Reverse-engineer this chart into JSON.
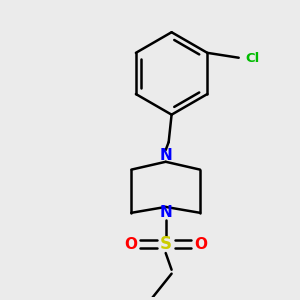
{
  "background_color": "#ebebeb",
  "bond_color": "#000000",
  "N_color": "#0000ff",
  "S_color": "#cccc00",
  "O_color": "#ff0000",
  "Cl_color": "#00bb00",
  "line_width": 1.8,
  "figsize": [
    3.0,
    3.0
  ],
  "dpi": 100,
  "xlim": [
    0,
    3.0
  ],
  "ylim": [
    0,
    3.0
  ]
}
